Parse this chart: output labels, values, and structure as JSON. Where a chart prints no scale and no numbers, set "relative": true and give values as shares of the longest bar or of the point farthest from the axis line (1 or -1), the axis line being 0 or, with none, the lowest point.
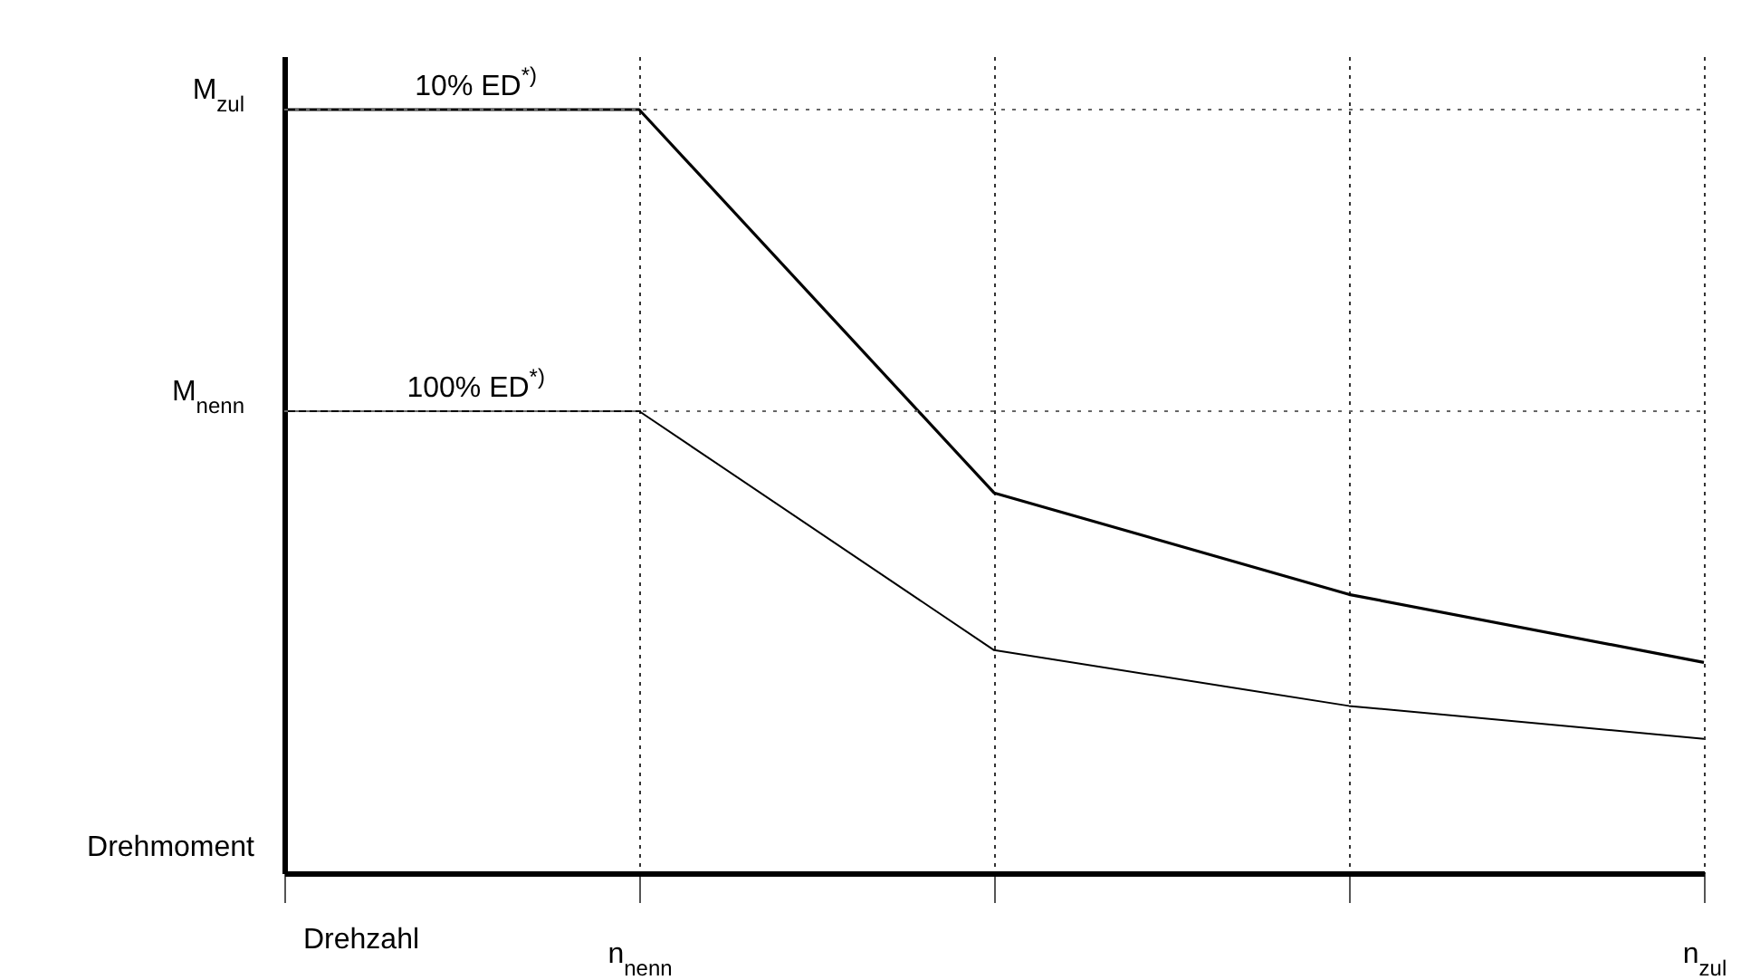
{
  "chart_data": {
    "type": "line",
    "relative": true,
    "xlabel": "Drehzahl",
    "ylabel": "Drehmoment",
    "categories": [
      null,
      "n$_{nenn}$",
      null,
      null,
      "n$_{zul}$"
    ],
    "grid": "x",
    "marker": "none",
    "line_style": "solid",
    "series": [
      {
        "color": "#000000",
        "values": [
          1,
          1,
          0.498,
          0.365,
          0.276
        ]
      },
      {
        "color": "#000000",
        "values": [
          0.605,
          0.605,
          0.292,
          0.219,
          0.176
        ]
      }
    ],
    "ref_lines": [
      {
        "axis": "y",
        "value": 1,
        "label": "M$_{zul}$",
        "line_style": "dotted",
        "color": "#666666"
      },
      {
        "axis": "y",
        "value": 0.605,
        "label": "M$_{nenn}$",
        "line_style": "dotted",
        "color": "#666666"
      }
    ],
    "annotations": [
      {
        "text": "10% ED$^{*)}$",
        "y": 1
      },
      {
        "text": "100% ED$^{*)}$",
        "y": 0.605
      }
    ]
  }
}
